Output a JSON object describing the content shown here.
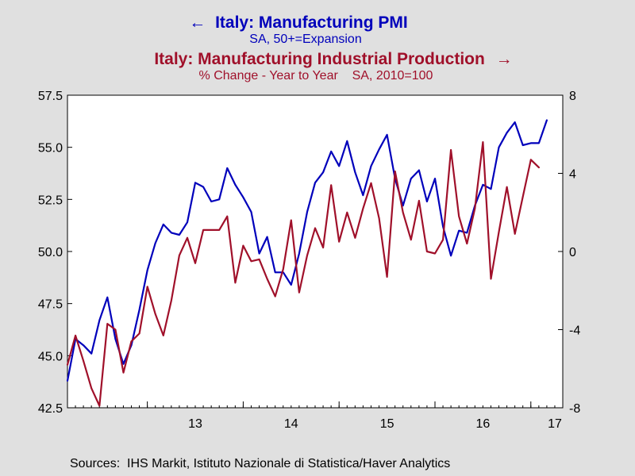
{
  "chart_data": {
    "type": "line",
    "title_lines": [
      {
        "text": "Italy: Manufacturing PMI",
        "arrow": "←",
        "arrow_side": "left",
        "color": "#0000bb"
      },
      {
        "text": "SA, 50+=Expansion",
        "color": "#0000bb"
      },
      {
        "text": "Italy: Manufacturing Industrial Production",
        "arrow": "→",
        "arrow_side": "right",
        "color": "#a0102a"
      },
      {
        "text": "% Change - Year to Year    SA, 2010=100",
        "color": "#a0102a"
      }
    ],
    "source": "Sources:  IHS Markit, Istituto Nazionale di Statistica/Haver Analytics",
    "x_range": [
      2012.167,
      2017.333
    ],
    "x_tick_labels": [
      {
        "label": "13",
        "x": 2013.5
      },
      {
        "label": "14",
        "x": 2014.5
      },
      {
        "label": "15",
        "x": 2015.5
      },
      {
        "label": "16",
        "x": 2016.5
      },
      {
        "label": "17",
        "x": 2017.25
      }
    ],
    "x_year_dividers": [
      2013,
      2014,
      2015,
      2016,
      2017
    ],
    "y_left": {
      "range": [
        42.5,
        57.5
      ],
      "ticks": [
        42.5,
        45.0,
        47.5,
        50.0,
        52.5,
        55.0,
        57.5
      ],
      "tick_labels": [
        "42.5",
        "45.0",
        "47.5",
        "50.0",
        "52.5",
        "55.0",
        "57.5"
      ]
    },
    "y_right": {
      "range": [
        -8,
        8
      ],
      "ticks": [
        -8,
        -4,
        0,
        4,
        8
      ],
      "tick_labels": [
        "-8",
        "-4",
        "0",
        "4",
        "8"
      ]
    },
    "grid": false,
    "series": [
      {
        "name": "Italy: Manufacturing PMI",
        "axis": "left",
        "color": "#0000bb",
        "x_start": 2012.167,
        "step": 0.08333,
        "values": [
          43.8,
          45.8,
          45.5,
          45.1,
          46.7,
          47.8,
          45.8,
          44.6,
          45.5,
          47.2,
          49.1,
          50.4,
          51.3,
          50.9,
          50.8,
          51.4,
          53.3,
          53.1,
          52.4,
          52.5,
          54.0,
          53.2,
          52.6,
          51.9,
          49.9,
          50.7,
          49.0,
          49.0,
          48.4,
          49.9,
          51.9,
          53.3,
          53.8,
          54.8,
          54.1,
          55.3,
          53.8,
          52.7,
          54.1,
          54.9,
          55.6,
          53.5,
          52.2,
          53.5,
          53.9,
          52.4,
          53.5,
          51.2,
          49.8,
          51.0,
          50.9,
          52.2,
          53.2,
          53.0,
          55.0,
          55.7,
          56.2,
          55.1,
          55.2,
          55.2,
          56.3
        ]
      },
      {
        "name": "Italy: Manufacturing Industrial Production",
        "axis": "right",
        "color": "#a0102a",
        "x_start": 2012.167,
        "step": 0.08333,
        "values": [
          -5.8,
          -4.3,
          -5.6,
          -7.0,
          -7.9,
          -3.7,
          -4.0,
          -6.2,
          -4.6,
          -4.2,
          -1.8,
          -3.2,
          -4.3,
          -2.5,
          -0.2,
          0.7,
          -0.6,
          1.1,
          1.1,
          1.1,
          1.8,
          -1.6,
          0.3,
          -0.5,
          -0.4,
          -1.4,
          -2.3,
          -0.9,
          1.6,
          -2.1,
          -0.2,
          1.2,
          0.2,
          3.4,
          0.5,
          2.0,
          0.7,
          2.2,
          3.5,
          1.7,
          -1.3,
          4.1,
          2.0,
          0.6,
          2.6,
          0.0,
          -0.1,
          0.6,
          5.2,
          1.8,
          0.4,
          2.2,
          5.6,
          -1.4,
          1.0,
          3.3,
          0.9,
          2.8,
          4.7,
          4.3
        ]
      }
    ]
  }
}
